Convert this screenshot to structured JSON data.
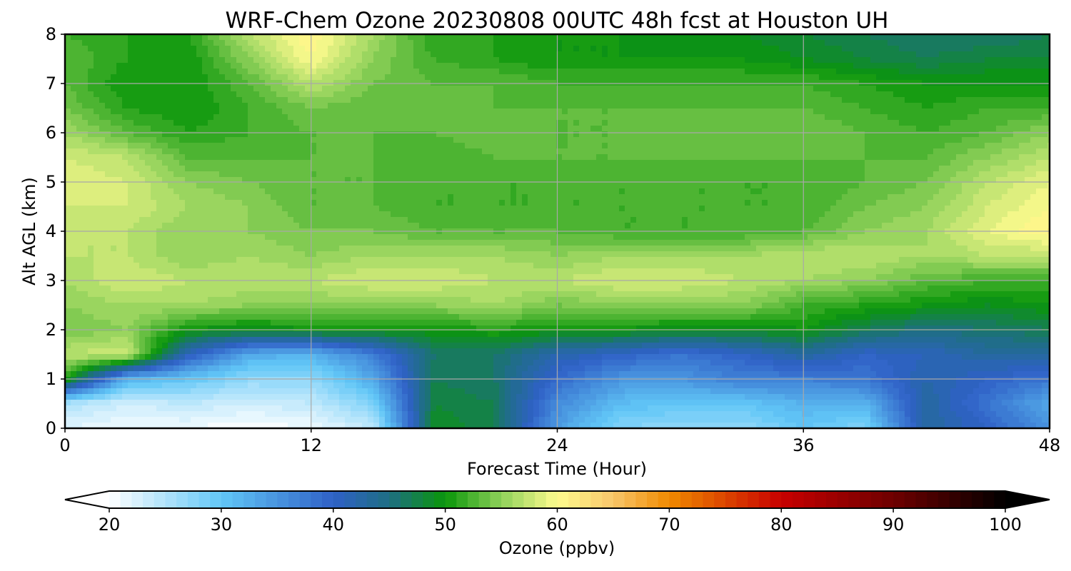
{
  "chart_data": {
    "type": "heatmap",
    "subtype": "filled-contour",
    "title": "WRF-Chem Ozone  20230808 00UTC 48h fcst at Houston UH",
    "xlabel": "Forecast Time (Hour)",
    "ylabel": "Alt AGL (km)",
    "xlim": [
      0,
      48
    ],
    "ylim": [
      0,
      8
    ],
    "x_ticks": [
      0,
      12,
      24,
      36,
      48
    ],
    "y_ticks": [
      0,
      1,
      2,
      3,
      4,
      5,
      6,
      7,
      8
    ],
    "grid": true,
    "x": [
      0,
      3,
      6,
      9,
      12,
      15,
      18,
      21,
      24,
      27,
      30,
      33,
      36,
      39,
      42,
      45,
      48
    ],
    "y": [
      0,
      0.5,
      1,
      1.5,
      2,
      2.5,
      3,
      3.5,
      4,
      4.5,
      5,
      5.5,
      6,
      6.5,
      7,
      7.5,
      8
    ],
    "z_units": "ppbv",
    "z": [
      [
        22,
        21,
        21,
        20,
        21,
        24,
        49,
        47,
        34,
        28,
        27,
        27,
        30,
        28,
        43,
        40,
        35
      ],
      [
        25,
        23,
        24,
        23,
        24,
        28,
        48,
        47,
        36,
        31,
        30,
        30,
        32,
        32,
        43,
        38,
        33
      ],
      [
        51,
        32,
        30,
        27,
        27,
        33,
        47,
        46,
        39,
        35,
        35,
        37,
        37,
        38,
        42,
        40,
        38
      ],
      [
        57,
        58,
        41,
        33,
        32,
        37,
        46,
        46,
        42,
        40,
        38,
        40,
        43,
        40,
        41,
        43,
        43
      ],
      [
        54,
        55,
        50,
        49,
        50,
        50,
        50,
        51,
        50,
        50,
        49,
        49,
        50,
        47,
        45,
        46,
        47
      ],
      [
        55,
        56,
        56,
        55,
        55,
        55,
        55,
        56,
        54,
        55,
        55,
        55,
        52,
        51,
        50,
        49,
        50
      ],
      [
        56,
        58,
        57,
        57,
        57,
        58,
        58,
        57,
        57,
        58,
        58,
        57,
        56,
        55,
        53,
        52,
        52
      ],
      [
        57,
        57,
        55,
        56,
        55,
        56,
        56,
        56,
        55,
        56,
        56,
        56,
        57,
        57,
        56,
        57,
        57
      ],
      [
        57,
        57,
        55,
        55,
        54,
        54,
        53,
        53,
        53,
        52,
        52,
        52,
        53,
        55,
        56,
        59,
        61
      ],
      [
        58,
        58,
        56,
        55,
        53,
        53,
        52,
        52,
        52,
        52,
        52,
        52,
        52,
        54,
        55,
        58,
        60
      ],
      [
        59,
        58,
        55,
        54,
        53,
        53,
        52,
        52,
        52,
        52,
        52,
        52,
        52,
        53,
        54,
        57,
        59
      ],
      [
        58,
        57,
        53,
        53,
        53,
        53,
        52,
        53,
        53,
        53,
        53,
        53,
        53,
        53,
        53,
        55,
        57
      ],
      [
        56,
        53,
        51,
        52,
        53,
        53,
        53,
        54,
        53,
        53,
        54,
        54,
        54,
        53,
        52,
        53,
        55
      ],
      [
        54,
        51,
        50,
        52,
        54,
        53,
        54,
        53,
        53,
        53,
        53,
        53,
        53,
        52,
        51,
        52,
        52
      ],
      [
        53,
        50,
        50,
        53,
        57,
        54,
        53,
        53,
        52,
        52,
        52,
        52,
        52,
        51,
        50,
        50,
        50
      ],
      [
        53,
        51,
        50,
        55,
        60,
        55,
        52,
        51,
        50,
        50,
        50,
        50,
        49,
        48,
        47,
        48,
        48
      ],
      [
        52,
        51,
        51,
        57,
        61,
        56,
        51,
        51,
        50,
        50,
        49,
        49,
        48,
        47,
        46,
        46,
        47
      ]
    ],
    "colorbar": {
      "label": "Ozone  (ppbv)",
      "min": 20,
      "max": 100,
      "step": 1,
      "ticks": [
        20,
        30,
        40,
        50,
        60,
        70,
        80,
        90,
        100
      ],
      "extend": "both",
      "extend_min_color": "#ffffff",
      "extend_max_color": "#000000"
    },
    "colormap_stops": [
      {
        "value": 20,
        "color": "#ffffff"
      },
      {
        "value": 30,
        "color": "#62c7f7"
      },
      {
        "value": 40,
        "color": "#2f61c7"
      },
      {
        "value": 45,
        "color": "#1e6e83"
      },
      {
        "value": 50,
        "color": "#0a960a"
      },
      {
        "value": 55,
        "color": "#8fd15a"
      },
      {
        "value": 60,
        "color": "#fefb8e"
      },
      {
        "value": 65,
        "color": "#f8c66a"
      },
      {
        "value": 70,
        "color": "#f08a00"
      },
      {
        "value": 80,
        "color": "#c70000"
      },
      {
        "value": 90,
        "color": "#6e0000"
      },
      {
        "value": 100,
        "color": "#000000"
      }
    ],
    "grid_color": "#a8a8a8"
  }
}
